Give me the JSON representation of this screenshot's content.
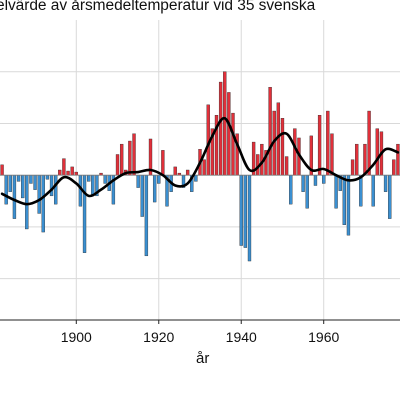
{
  "chart_data": {
    "type": "bar",
    "title": "elvärde av årsmedeltemperatur vid 35 svenska",
    "xlabel": "år",
    "ylabel": "",
    "grid": true,
    "baseline": 0,
    "bar_colors": {
      "positive": "#e0303a",
      "negative": "#3b8fd0",
      "curve": "#000000",
      "grid": "#d9d9d9"
    },
    "x_ticks": [
      1900,
      1920,
      1940,
      1960
    ],
    "y_gridlines": [
      -1.0,
      -0.5,
      0.5,
      1.0
    ],
    "xlim": [
      1881.5,
      1978.5
    ],
    "ylim": [
      -1.4,
      1.5
    ],
    "years": [
      1882,
      1883,
      1884,
      1885,
      1886,
      1887,
      1888,
      1889,
      1890,
      1891,
      1892,
      1893,
      1894,
      1895,
      1896,
      1897,
      1898,
      1899,
      1900,
      1901,
      1902,
      1903,
      1904,
      1905,
      1906,
      1907,
      1908,
      1909,
      1910,
      1911,
      1912,
      1913,
      1914,
      1915,
      1916,
      1917,
      1918,
      1919,
      1920,
      1921,
      1922,
      1923,
      1924,
      1925,
      1926,
      1927,
      1928,
      1929,
      1930,
      1931,
      1932,
      1933,
      1934,
      1935,
      1936,
      1937,
      1938,
      1939,
      1940,
      1941,
      1942,
      1943,
      1944,
      1945,
      1946,
      1947,
      1948,
      1949,
      1950,
      1951,
      1952,
      1953,
      1954,
      1955,
      1956,
      1957,
      1958,
      1959,
      1960,
      1961,
      1962,
      1963,
      1964,
      1965,
      1966,
      1967,
      1968,
      1969,
      1970,
      1971,
      1972,
      1973,
      1974,
      1975,
      1976,
      1977,
      1978
    ],
    "values": [
      0.1,
      -0.28,
      -0.16,
      -0.42,
      -0.06,
      -0.22,
      -0.52,
      -0.08,
      -0.14,
      -0.37,
      -0.55,
      -0.04,
      -0.2,
      -0.28,
      0.05,
      0.16,
      0.04,
      0.08,
      0.03,
      -0.3,
      -0.75,
      -0.06,
      -0.2,
      -0.2,
      0.02,
      -0.08,
      -0.15,
      -0.28,
      0.2,
      0.3,
      0.05,
      0.33,
      0.4,
      -0.12,
      -0.4,
      -0.78,
      0.35,
      -0.26,
      -0.08,
      0.24,
      -0.3,
      -0.16,
      0.08,
      0.02,
      -0.12,
      0.05,
      -0.16,
      -0.06,
      0.25,
      0.15,
      0.68,
      0.45,
      0.58,
      0.9,
      1.0,
      0.8,
      0.6,
      0.4,
      -0.68,
      -0.7,
      -0.83,
      0.32,
      0.2,
      0.3,
      0.24,
      0.85,
      0.62,
      0.7,
      0.55,
      0.18,
      -0.28,
      0.45,
      0.36,
      -0.16,
      -0.32,
      0.38,
      -0.1,
      0.58,
      -0.08,
      0.62,
      0.4,
      -0.32,
      -0.15,
      -0.48,
      -0.58,
      0.15,
      0.3,
      -0.3,
      0.3,
      0.62,
      -0.3,
      0.45,
      0.42,
      -0.16,
      -0.42,
      0.15,
      0.3
    ],
    "smoothed_series": {
      "years": [
        1882,
        1885,
        1888,
        1891,
        1894,
        1897,
        1900,
        1903,
        1906,
        1909,
        1912,
        1915,
        1918,
        1921,
        1924,
        1927,
        1930,
        1933,
        1936,
        1939,
        1942,
        1945,
        1948,
        1951,
        1954,
        1957,
        1960,
        1963,
        1966,
        1969,
        1972,
        1975,
        1978
      ],
      "values": [
        -0.18,
        -0.24,
        -0.28,
        -0.24,
        -0.14,
        -0.02,
        -0.08,
        -0.2,
        -0.14,
        -0.05,
        0.02,
        0.03,
        0.05,
        0.0,
        -0.1,
        -0.08,
        0.12,
        0.38,
        0.55,
        0.3,
        0.05,
        0.12,
        0.33,
        0.4,
        0.2,
        0.05,
        0.06,
        0.0,
        -0.05,
        -0.02,
        0.1,
        0.25,
        0.22
      ]
    }
  }
}
